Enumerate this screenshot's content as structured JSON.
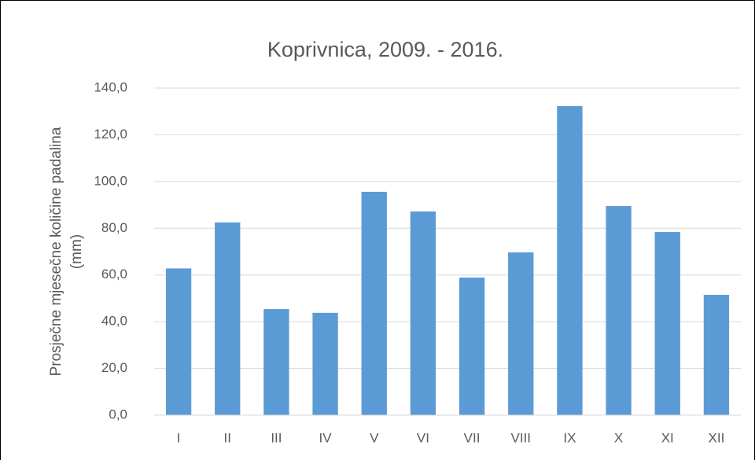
{
  "chart_data": {
    "type": "bar",
    "title": "Koprivnica, 2009. - 2016.",
    "ylabel": [
      "Prosječne mjesečne količine padalina",
      "(mm)"
    ],
    "categories": [
      "I",
      "II",
      "III",
      "IV",
      "V",
      "VI",
      "VII",
      "VIII",
      "IX",
      "X",
      "XI",
      "XII"
    ],
    "values": [
      62.8,
      82.5,
      45.4,
      43.8,
      95.6,
      87.2,
      58.9,
      69.7,
      132.3,
      89.5,
      78.4,
      51.5
    ],
    "color": "#5b9bd5",
    "ylim": [
      0,
      140
    ],
    "yticks": [
      {
        "value": 0,
        "label": "0,0"
      },
      {
        "value": 20,
        "label": "20,0"
      },
      {
        "value": 40,
        "label": "40,0"
      },
      {
        "value": 60,
        "label": "60,0"
      },
      {
        "value": 80,
        "label": "80,0"
      },
      {
        "value": 100,
        "label": "100,0"
      },
      {
        "value": 120,
        "label": "120,0"
      },
      {
        "value": 140,
        "label": "140,0"
      }
    ],
    "grid": true
  }
}
